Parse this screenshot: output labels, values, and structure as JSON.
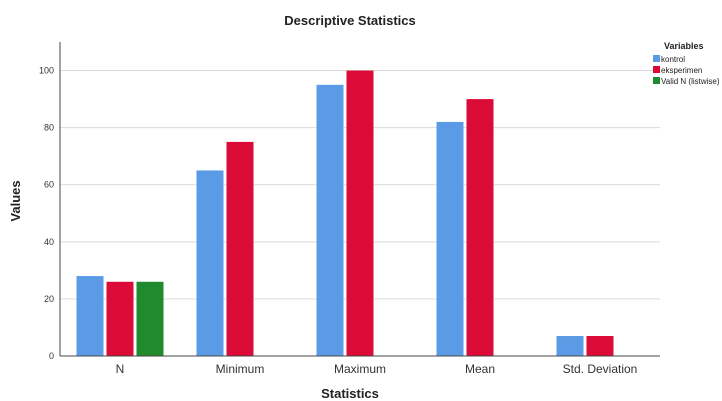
{
  "chart_data": {
    "type": "bar",
    "title": "Descriptive Statistics",
    "xlabel": "Statistics",
    "ylabel": "Values",
    "ylim": [
      0,
      110
    ],
    "yticks": [
      0,
      20,
      40,
      60,
      80,
      100
    ],
    "grid": true,
    "legend_position": "top-right",
    "legend_title": "Variables",
    "categories": [
      "N",
      "Minimum",
      "Maximum",
      "Mean",
      "Std. Deviation"
    ],
    "series": [
      {
        "name": "kontrol",
        "color": "#5b9be6",
        "values": [
          28,
          65,
          95,
          82,
          7
        ]
      },
      {
        "name": "eksperimen",
        "color": "#dc0a36",
        "values": [
          26,
          75,
          100,
          90,
          7
        ]
      },
      {
        "name": "Valid N (listwise)",
        "color": "#1f8a2e",
        "values": [
          26,
          null,
          null,
          null,
          null
        ]
      }
    ]
  }
}
